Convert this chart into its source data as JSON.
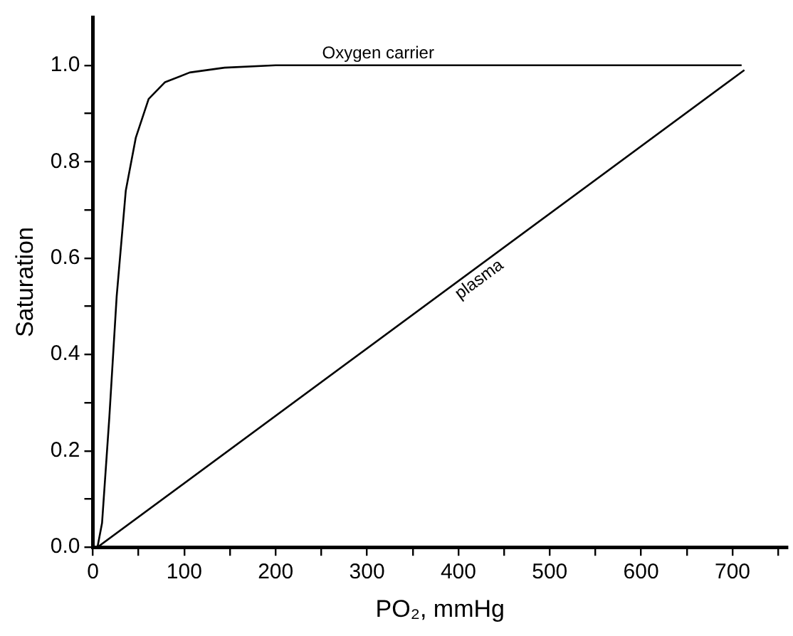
{
  "chart_data": {
    "type": "line",
    "xlabel": "PO₂, mmHg",
    "ylabel": "Saturation",
    "xlim": [
      0,
      760
    ],
    "ylim": [
      0,
      1.1
    ],
    "xticks": [
      0,
      {
        "value": 50,
        "label": null
      },
      100,
      {
        "value": 150,
        "label": null
      },
      200,
      {
        "value": 250,
        "label": null
      },
      300,
      {
        "value": 350,
        "label": null
      },
      400,
      {
        "value": 450,
        "label": null
      },
      500,
      {
        "value": 550,
        "label": null
      },
      600,
      {
        "value": 650,
        "label": null
      },
      700,
      {
        "value": 750,
        "label": null
      }
    ],
    "yticks": [
      {
        "value": 0,
        "label": "0.0"
      },
      {
        "value": 0.1,
        "label": null
      },
      {
        "value": 0.2,
        "label": "0.2"
      },
      {
        "value": 0.3,
        "label": null
      },
      {
        "value": 0.4,
        "label": "0.4"
      },
      {
        "value": 0.5,
        "label": null
      },
      {
        "value": 0.6,
        "label": "0.6"
      },
      {
        "value": 0.7,
        "label": null
      },
      {
        "value": 0.8,
        "label": "0.8"
      },
      {
        "value": 0.9,
        "label": null
      },
      {
        "value": 1.0,
        "label": "1.0"
      }
    ],
    "grid": false,
    "legend": false,
    "marker": "none",
    "line_style": "solid",
    "series": [
      {
        "name": "Oxygen carrier",
        "color": "#000000",
        "x": [
          5,
          10,
          18,
          26,
          36,
          47,
          61,
          79,
          106,
          144,
          200,
          710
        ],
        "values": [
          0,
          0.05,
          0.27,
          0.52,
          0.74,
          0.85,
          0.93,
          0.965,
          0.985,
          0.995,
          1.0,
          1.0
        ]
      },
      {
        "name": "plasma",
        "color": "#000000",
        "x": [
          5,
          713
        ],
        "values": [
          0,
          0.99
        ]
      }
    ]
  }
}
